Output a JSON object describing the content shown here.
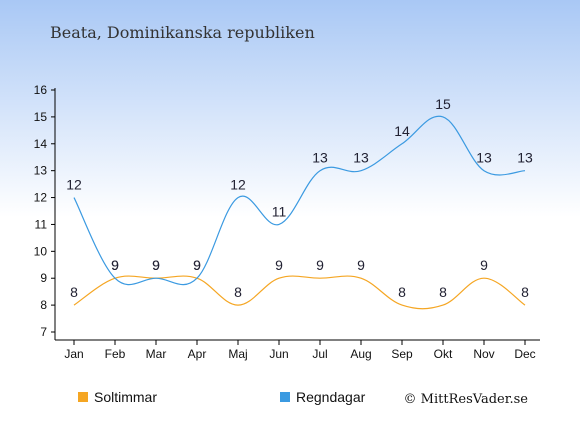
{
  "chart_data": {
    "type": "line",
    "title": "Beata, Dominikanska republiken",
    "categories": [
      "Jan",
      "Feb",
      "Mar",
      "Apr",
      "Maj",
      "Jun",
      "Jul",
      "Aug",
      "Sep",
      "Okt",
      "Nov",
      "Dec"
    ],
    "series": [
      {
        "name": "Soltimmar",
        "values": [
          8,
          9,
          9,
          9,
          8,
          9,
          9,
          9,
          8,
          8,
          9,
          8
        ],
        "color": "#f5a623"
      },
      {
        "name": "Regndagar",
        "values": [
          12,
          9,
          9,
          9,
          12,
          11,
          13,
          13,
          14,
          15,
          13,
          13
        ],
        "color": "#3b9ae1"
      }
    ],
    "ylim": [
      7,
      16
    ],
    "yticks": [
      7,
      8,
      9,
      10,
      11,
      12,
      13,
      14,
      15,
      16
    ],
    "legend_position": "bottom-left",
    "grid": false
  },
  "credit": "© MittResVader.se",
  "colors": {
    "background_top": "#a9c8f5",
    "background_bottom": "#ffffff"
  }
}
